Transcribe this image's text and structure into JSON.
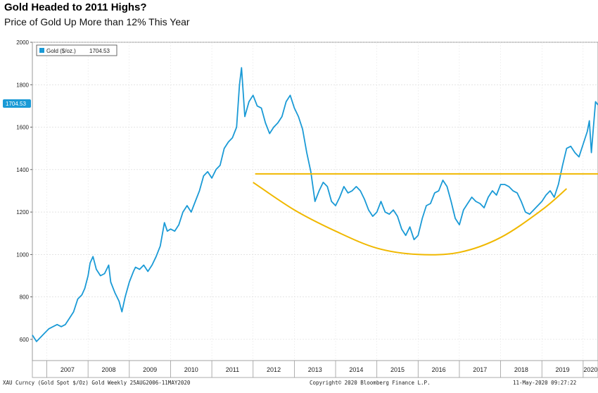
{
  "header": {
    "title": "Gold Headed to 2011 Highs?",
    "subtitle": "Price of Gold Up More than 12% This Year"
  },
  "legend": {
    "label": "Gold ($/oz.)",
    "value": "1704.53"
  },
  "last_value_badge": "1704.53",
  "footer": {
    "left": "XAU Curncy (Gold Spot  $/Oz) Gold  Weekly 25AUG2006-11MAY2020",
    "center": "Copyright© 2020 Bloomberg Finance L.P.",
    "right": "11-May-2020 09:27:22"
  },
  "colors": {
    "series": "#1a9ad6",
    "overlay": "#f0b800",
    "badge": "#1a9ad6"
  },
  "chart_data": {
    "type": "line",
    "title": "Gold Headed to 2011 Highs?",
    "subtitle": "Price of Gold Up More than 12% This Year",
    "xlabel": "",
    "ylabel": "",
    "xlim": [
      2006.65,
      2020.36
    ],
    "ylim": [
      500,
      2000
    ],
    "yticks": [
      600,
      800,
      1000,
      1200,
      1400,
      1600,
      1800,
      2000
    ],
    "x_tick_labels": [
      "2007",
      "2008",
      "2009",
      "2010",
      "2011",
      "2012",
      "2013",
      "2014",
      "2015",
      "2016",
      "2017",
      "2018",
      "2019",
      "2020"
    ],
    "grid": true,
    "legend_position": "top-left",
    "series": [
      {
        "name": "Gold ($/oz.)",
        "x": [
          2006.65,
          2006.75,
          2006.85,
          2006.95,
          2007.05,
          2007.15,
          2007.25,
          2007.35,
          2007.45,
          2007.55,
          2007.65,
          2007.75,
          2007.85,
          2007.92,
          2008.0,
          2008.05,
          2008.12,
          2008.2,
          2008.3,
          2008.4,
          2008.5,
          2008.55,
          2008.65,
          2008.75,
          2008.82,
          2008.9,
          2009.0,
          2009.1,
          2009.15,
          2009.25,
          2009.35,
          2009.45,
          2009.55,
          2009.65,
          2009.75,
          2009.85,
          2009.92,
          2010.0,
          2010.1,
          2010.2,
          2010.3,
          2010.4,
          2010.5,
          2010.6,
          2010.7,
          2010.8,
          2010.9,
          2011.0,
          2011.1,
          2011.2,
          2011.3,
          2011.4,
          2011.5,
          2011.6,
          2011.67,
          2011.72,
          2011.8,
          2011.9,
          2012.0,
          2012.1,
          2012.2,
          2012.3,
          2012.4,
          2012.5,
          2012.6,
          2012.7,
          2012.8,
          2012.9,
          2013.0,
          2013.1,
          2013.2,
          2013.3,
          2013.4,
          2013.5,
          2013.6,
          2013.7,
          2013.8,
          2013.9,
          2014.0,
          2014.1,
          2014.2,
          2014.3,
          2014.4,
          2014.5,
          2014.6,
          2014.7,
          2014.8,
          2014.9,
          2015.0,
          2015.1,
          2015.2,
          2015.3,
          2015.4,
          2015.5,
          2015.6,
          2015.7,
          2015.8,
          2015.9,
          2016.0,
          2016.1,
          2016.2,
          2016.3,
          2016.4,
          2016.5,
          2016.6,
          2016.7,
          2016.8,
          2016.9,
          2017.0,
          2017.1,
          2017.2,
          2017.3,
          2017.4,
          2017.5,
          2017.6,
          2017.7,
          2017.8,
          2017.9,
          2018.0,
          2018.1,
          2018.2,
          2018.3,
          2018.4,
          2018.5,
          2018.6,
          2018.7,
          2018.8,
          2018.9,
          2019.0,
          2019.1,
          2019.2,
          2019.3,
          2019.4,
          2019.5,
          2019.6,
          2019.7,
          2019.8,
          2019.9,
          2020.0,
          2020.1,
          2020.15,
          2020.2,
          2020.25,
          2020.3,
          2020.36
        ],
        "values": [
          620,
          590,
          610,
          630,
          650,
          660,
          670,
          660,
          670,
          700,
          730,
          790,
          810,
          840,
          900,
          960,
          990,
          930,
          900,
          910,
          950,
          870,
          820,
          780,
          730,
          800,
          870,
          920,
          940,
          930,
          950,
          920,
          950,
          990,
          1040,
          1150,
          1110,
          1120,
          1110,
          1140,
          1200,
          1230,
          1200,
          1250,
          1300,
          1370,
          1390,
          1360,
          1400,
          1420,
          1500,
          1530,
          1550,
          1600,
          1800,
          1880,
          1650,
          1720,
          1750,
          1700,
          1690,
          1620,
          1570,
          1600,
          1620,
          1650,
          1720,
          1750,
          1690,
          1650,
          1590,
          1480,
          1390,
          1250,
          1300,
          1340,
          1320,
          1250,
          1230,
          1270,
          1320,
          1290,
          1300,
          1320,
          1300,
          1260,
          1210,
          1180,
          1200,
          1250,
          1200,
          1190,
          1210,
          1180,
          1120,
          1090,
          1130,
          1070,
          1090,
          1170,
          1230,
          1240,
          1290,
          1300,
          1350,
          1320,
          1250,
          1170,
          1140,
          1210,
          1240,
          1270,
          1250,
          1240,
          1220,
          1270,
          1300,
          1280,
          1330,
          1330,
          1320,
          1300,
          1290,
          1250,
          1200,
          1190,
          1210,
          1230,
          1250,
          1280,
          1300,
          1270,
          1330,
          1420,
          1500,
          1510,
          1480,
          1460,
          1520,
          1580,
          1630,
          1480,
          1600,
          1720,
          1704.53
        ]
      }
    ],
    "overlays": [
      {
        "type": "resistance-line",
        "value": 1380,
        "x_range": [
          2012.05,
          2020.36
        ]
      },
      {
        "type": "rounded-bottom-arc",
        "points": [
          [
            2012.0,
            1340
          ],
          [
            2013.0,
            1210
          ],
          [
            2014.0,
            1110
          ],
          [
            2015.0,
            1030
          ],
          [
            2016.0,
            1000
          ],
          [
            2017.0,
            1010
          ],
          [
            2018.0,
            1080
          ],
          [
            2019.0,
            1210
          ],
          [
            2019.6,
            1310
          ]
        ]
      }
    ]
  }
}
